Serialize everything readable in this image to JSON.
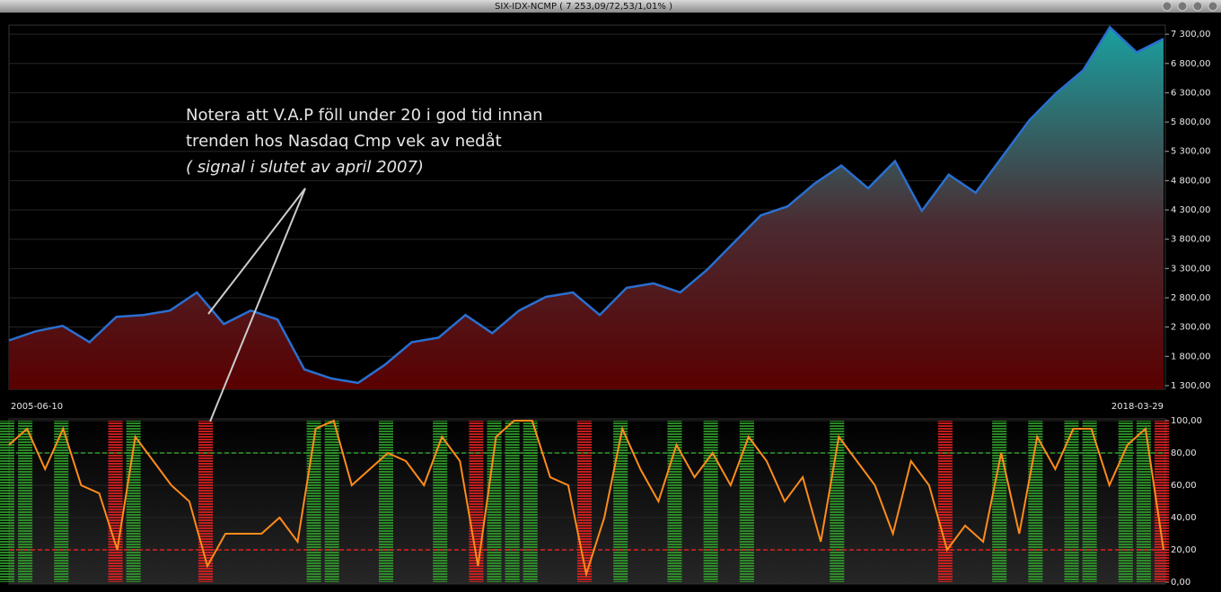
{
  "chart_data": [
    {
      "type": "area",
      "title": "SIX-IDX-NCMP ( 7 253,09/72,53/1,01% )",
      "categories": [
        "2005-06-10",
        null,
        null,
        null,
        null,
        null,
        null,
        null,
        null,
        null,
        null,
        null,
        null,
        null,
        null,
        null,
        null,
        null,
        null,
        null,
        null,
        null,
        null,
        null,
        null,
        null,
        null,
        null,
        null,
        null,
        null,
        null,
        null,
        null,
        null,
        null,
        null,
        null,
        null,
        null,
        null,
        null,
        null,
        "2018-03-29"
      ],
      "series": [
        {
          "name": "SIX-IDX-NCMP",
          "color": "#2a6fd0",
          "values": [
            2073,
            2228,
            2320,
            2042,
            2475,
            2506,
            2583,
            2892,
            2351,
            2583,
            2429,
            1578,
            1424,
            1346,
            1656,
            2042,
            2120,
            2506,
            2197,
            2583,
            2815,
            2892,
            2506,
            2970,
            3047,
            2892,
            3279,
            3743,
            4207,
            4361,
            4748,
            5057,
            4670,
            5134,
            4284,
            4902,
            4593,
            5211,
            5830,
            6294,
            6680,
            7420,
            6990,
            7220
          ]
        }
      ],
      "ylim": [
        1238,
        7455
      ],
      "yticks": [
        {
          "value": 1300,
          "label": "1 300,00"
        },
        {
          "value": 1800,
          "label": "1 800,00"
        },
        {
          "value": 2300,
          "label": "2 300,00"
        },
        {
          "value": 2800,
          "label": "2 800,00"
        },
        {
          "value": 3300,
          "label": "3 300,00"
        },
        {
          "value": 3800,
          "label": "3 800,00"
        },
        {
          "value": 4300,
          "label": "4 300,00"
        },
        {
          "value": 4800,
          "label": "4 800,00"
        },
        {
          "value": 5300,
          "label": "5 300,00"
        },
        {
          "value": 5800,
          "label": "5 800,00"
        },
        {
          "value": 6300,
          "label": "6 300,00"
        },
        {
          "value": 6800,
          "label": "6 800,00"
        },
        {
          "value": 7300,
          "label": "7 300,00"
        }
      ],
      "grid": true,
      "annotations": [
        "Notera att V.A.P föll under 20 i god tid innan",
        "trenden hos Nasdaq Cmp vek av nedåt",
        "( signal i slutet av april 2007)"
      ]
    },
    {
      "type": "oscillator",
      "series": [
        {
          "name": "V.A.P",
          "color": "#ff8c1a",
          "values": [
            85,
            95,
            70,
            95,
            60,
            55,
            20,
            90,
            75,
            60,
            50,
            10,
            30,
            30,
            30,
            40,
            25,
            95,
            100,
            60,
            70,
            80,
            75,
            60,
            90,
            75,
            10,
            90,
            100,
            100,
            65,
            60,
            5,
            40,
            95,
            70,
            50,
            85,
            65,
            80,
            60,
            90,
            75,
            50,
            65,
            25,
            90,
            75,
            60,
            30,
            75,
            60,
            20,
            35,
            25,
            80,
            30,
            90,
            70,
            95,
            95,
            60,
            85,
            95,
            20
          ]
        }
      ],
      "ylim": [
        0,
        100
      ],
      "yticks": [
        {
          "value": 0,
          "label": "0,00"
        },
        {
          "value": 20,
          "label": "20,00"
        },
        {
          "value": 40,
          "label": "40,00"
        },
        {
          "value": 60,
          "label": "60,00"
        },
        {
          "value": 80,
          "label": "80,00"
        },
        {
          "value": 100,
          "label": "100,00"
        }
      ],
      "upper_band": 80,
      "upper_color": "#2f9e2a",
      "lower_band": 20,
      "lower_color": "#e02020",
      "grid": true
    }
  ]
}
